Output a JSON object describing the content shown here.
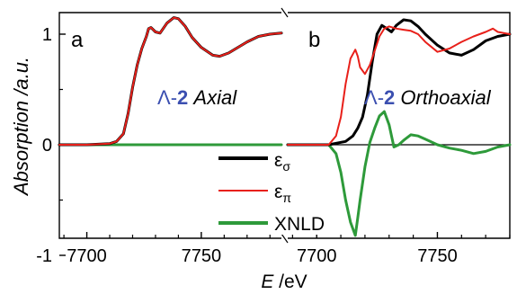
{
  "chart_data": [
    {
      "type": "line",
      "panel_label": "a",
      "annotation_prefix": "Λ-",
      "annotation_number": "2",
      "annotation_suffix": " Axial",
      "x_ticks": [
        7700,
        7750
      ],
      "xlim": [
        7688,
        7785
      ],
      "ylim": [
        -1,
        1.15
      ],
      "series": [
        {
          "name": "εσ",
          "color": "#000000",
          "x": [
            7688,
            7700,
            7710,
            7713,
            7716,
            7718,
            7720,
            7722,
            7724,
            7726,
            7727,
            7728,
            7730,
            7732,
            7735,
            7738,
            7740,
            7743,
            7746,
            7750,
            7755,
            7758,
            7762,
            7770,
            7775,
            7780,
            7785
          ],
          "y": [
            0.0,
            0.0,
            0.01,
            0.03,
            0.1,
            0.28,
            0.52,
            0.72,
            0.87,
            0.98,
            1.05,
            1.06,
            1.02,
            1.01,
            1.1,
            1.15,
            1.14,
            1.07,
            0.97,
            0.88,
            0.81,
            0.8,
            0.83,
            0.93,
            0.98,
            1.0,
            1.01
          ]
        },
        {
          "name": "επ",
          "color": "#e8201a",
          "x": [
            7688,
            7700,
            7710,
            7713,
            7716,
            7718,
            7720,
            7722,
            7724,
            7726,
            7727,
            7728,
            7730,
            7732,
            7735,
            7738,
            7740,
            7743,
            7746,
            7750,
            7755,
            7758,
            7762,
            7770,
            7775,
            7780,
            7785
          ],
          "y": [
            0.0,
            0.0,
            0.01,
            0.03,
            0.1,
            0.28,
            0.52,
            0.72,
            0.87,
            0.98,
            1.05,
            1.06,
            1.02,
            1.01,
            1.1,
            1.15,
            1.14,
            1.07,
            0.97,
            0.88,
            0.81,
            0.8,
            0.83,
            0.93,
            0.98,
            1.0,
            1.01
          ]
        },
        {
          "name": "XNLD",
          "color": "#2e9a3a",
          "x": [
            7688,
            7785
          ],
          "y": [
            0.0,
            0.0
          ]
        }
      ]
    },
    {
      "type": "line",
      "panel_label": "b",
      "annotation_prefix": "Λ-",
      "annotation_number": "2",
      "annotation_suffix": " Orthoaxial",
      "x_ticks": [
        7700,
        7750
      ],
      "x_labels": [
        "7700",
        "7750"
      ],
      "y_ticks": [
        1,
        0,
        -1
      ],
      "y_labels": [
        "1",
        "0",
        "-1"
      ],
      "xlabel_italic": "E",
      "xlabel_unit": " /eV",
      "ylabel": "Absorption /a.u.",
      "xlim": [
        7688,
        7780
      ],
      "ylim": [
        -1,
        1.15
      ],
      "legend_position": "bottom-left",
      "legend": [
        {
          "series": "εσ",
          "base": "ε",
          "sub": "σ"
        },
        {
          "series": "επ",
          "base": "ε",
          "sub": "π"
        },
        {
          "series": "XNLD",
          "base": "XNLD",
          "sub": ""
        }
      ],
      "series": [
        {
          "name": "εσ",
          "color": "#000000",
          "x": [
            7688,
            7705,
            7712,
            7715,
            7717,
            7719,
            7721,
            7723,
            7725,
            7727,
            7729,
            7731,
            7733,
            7736,
            7739,
            7742,
            7745,
            7750,
            7755,
            7760,
            7765,
            7770,
            7775,
            7780
          ],
          "y": [
            0.0,
            0.0,
            0.03,
            0.08,
            0.15,
            0.25,
            0.45,
            0.75,
            1.0,
            1.08,
            1.05,
            1.02,
            1.08,
            1.13,
            1.12,
            1.07,
            1.0,
            0.9,
            0.83,
            0.81,
            0.86,
            0.94,
            0.98,
            1.0
          ]
        },
        {
          "name": "επ",
          "color": "#e8201a",
          "x": [
            7688,
            7705,
            7708,
            7710,
            7712,
            7714,
            7716,
            7717,
            7718,
            7720,
            7722,
            7724,
            7726,
            7728,
            7730,
            7733,
            7736,
            7739,
            7742,
            7745,
            7750,
            7755,
            7760,
            7765,
            7770,
            7773,
            7775,
            7780
          ],
          "y": [
            0.0,
            0.0,
            0.08,
            0.25,
            0.55,
            0.78,
            0.86,
            0.8,
            0.7,
            0.64,
            0.72,
            0.85,
            0.98,
            1.05,
            1.07,
            1.05,
            1.04,
            1.03,
            1.0,
            0.93,
            0.84,
            0.87,
            0.93,
            0.98,
            1.02,
            1.05,
            1.02,
            1.0
          ]
        },
        {
          "name": "XNLD",
          "color": "#2e9a3a",
          "x": [
            7688,
            7705,
            7708,
            7710,
            7712,
            7714,
            7716,
            7717,
            7718,
            7720,
            7722,
            7724,
            7726,
            7728,
            7730,
            7732,
            7734,
            7736,
            7739,
            7742,
            7745,
            7750,
            7755,
            7760,
            7765,
            7770,
            7775,
            7780
          ],
          "y": [
            0.0,
            0.0,
            -0.08,
            -0.25,
            -0.5,
            -0.7,
            -0.82,
            -0.66,
            -0.5,
            -0.2,
            0.02,
            0.15,
            0.26,
            0.3,
            0.18,
            -0.02,
            0.0,
            0.04,
            0.09,
            0.08,
            0.05,
            0.0,
            -0.03,
            -0.05,
            -0.08,
            -0.06,
            -0.02,
            0.0
          ]
        }
      ]
    }
  ]
}
